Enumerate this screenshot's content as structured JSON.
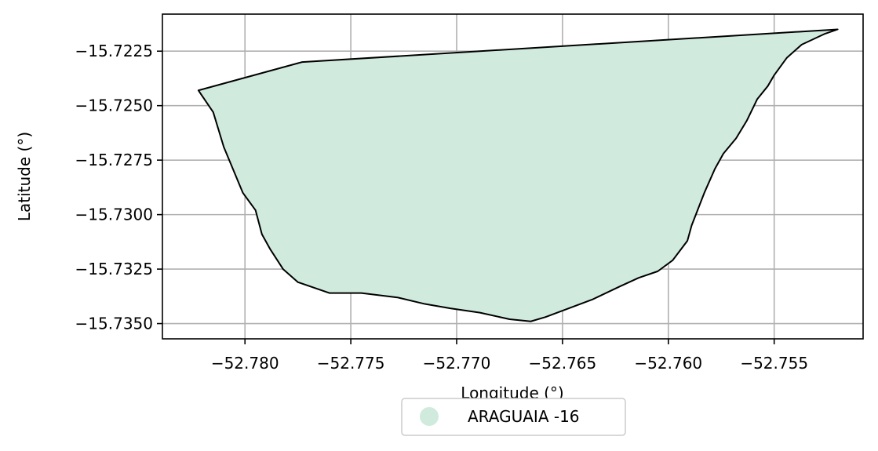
{
  "chart_data": {
    "type": "area",
    "title": "",
    "xlabel": "Longitude (°)",
    "ylabel": "Latitude (°)",
    "xlim": [
      -52.7839,
      -52.7508
    ],
    "ylim": [
      -15.7357,
      -15.7208
    ],
    "xticks": [
      -52.78,
      -52.775,
      -52.77,
      -52.765,
      -52.76,
      -52.755
    ],
    "xtick_labels": [
      "−52.780",
      "−52.775",
      "−52.770",
      "−52.765",
      "−52.760",
      "−52.755"
    ],
    "yticks": [
      -15.7225,
      -15.725,
      -15.7275,
      -15.73,
      -15.7325,
      -15.735
    ],
    "ytick_labels": [
      "−15.7225",
      "−15.7250",
      "−15.7275",
      "−15.7300",
      "−15.7325",
      "−15.7350"
    ],
    "grid": true,
    "legend_position": "bottom-center",
    "fill_color": "#d0ebde",
    "edge_color": "#000000",
    "series": [
      {
        "name": "ARAGUAIA -16",
        "polygon": [
          [
            -52.7822,
            -15.7243
          ],
          [
            -52.7773,
            -15.723
          ],
          [
            -52.752,
            -15.7215
          ],
          [
            -52.7526,
            -15.7217
          ],
          [
            -52.7537,
            -15.7222
          ],
          [
            -52.7544,
            -15.7228
          ],
          [
            -52.755,
            -15.7236
          ],
          [
            -52.7553,
            -15.7241
          ],
          [
            -52.7558,
            -15.7247
          ],
          [
            -52.7563,
            -15.7257
          ],
          [
            -52.7568,
            -15.7265
          ],
          [
            -52.7574,
            -15.7272
          ],
          [
            -52.7578,
            -15.7279
          ],
          [
            -52.7583,
            -15.729
          ],
          [
            -52.7589,
            -15.7305
          ],
          [
            -52.7591,
            -15.7312
          ],
          [
            -52.7598,
            -15.7321
          ],
          [
            -52.7605,
            -15.7326
          ],
          [
            -52.7614,
            -15.7329
          ],
          [
            -52.7623,
            -15.7333
          ],
          [
            -52.7636,
            -15.7339
          ],
          [
            -52.7647,
            -15.7343
          ],
          [
            -52.7658,
            -15.7347
          ],
          [
            -52.7665,
            -15.7349
          ],
          [
            -52.7675,
            -15.7348
          ],
          [
            -52.7689,
            -15.7345
          ],
          [
            -52.7703,
            -15.7343
          ],
          [
            -52.7715,
            -15.7341
          ],
          [
            -52.7728,
            -15.7338
          ],
          [
            -52.7745,
            -15.7336
          ],
          [
            -52.776,
            -15.7336
          ],
          [
            -52.7775,
            -15.7331
          ],
          [
            -52.7782,
            -15.7325
          ],
          [
            -52.7788,
            -15.7316
          ],
          [
            -52.7792,
            -15.7309
          ],
          [
            -52.7795,
            -15.7298
          ],
          [
            -52.7801,
            -15.729
          ],
          [
            -52.781,
            -15.7269
          ],
          [
            -52.7815,
            -15.7253
          ],
          [
            -52.7822,
            -15.7243
          ]
        ]
      }
    ]
  }
}
